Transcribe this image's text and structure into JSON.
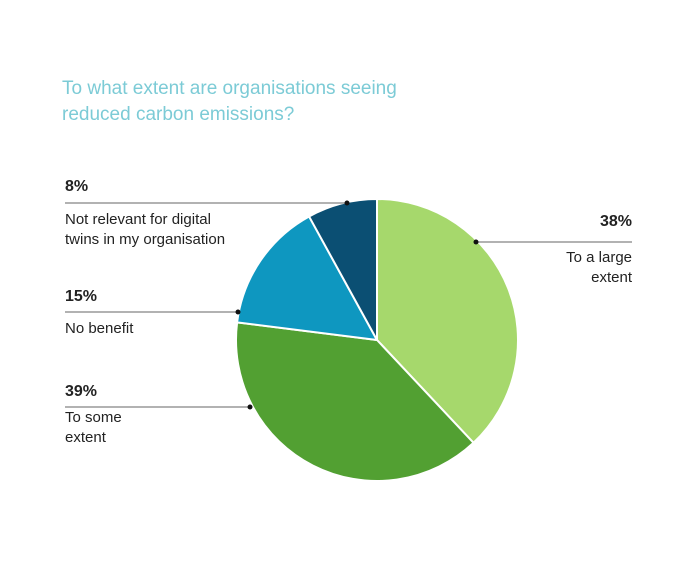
{
  "chart_data": {
    "type": "pie",
    "title": "To what extent are organisations seeing reduced carbon emissions?",
    "categories": [
      "To a large extent",
      "To some extent",
      "No benefit",
      "Not relevant for digital twins in my organisation"
    ],
    "values": [
      38,
      39,
      15,
      8
    ],
    "value_labels": [
      "38%",
      "39%",
      "15%",
      "8%"
    ],
    "colors": [
      "#a6d86c",
      "#52a032",
      "#0e97c0",
      "#0b4f73"
    ]
  }
}
